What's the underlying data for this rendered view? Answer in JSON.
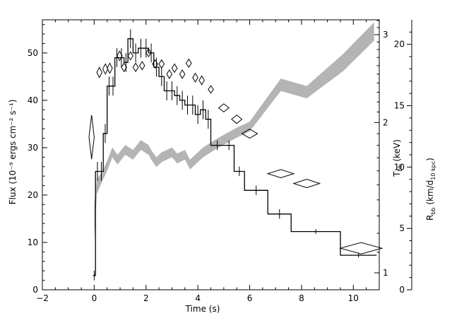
{
  "chart_data": {
    "type": "line",
    "grid": false,
    "xlabel": "Time (s)",
    "xlim": [
      -2,
      11
    ],
    "x_ticks": [
      -2,
      0,
      2,
      4,
      6,
      8,
      10
    ],
    "axes": {
      "flux": {
        "label": "Flux (10⁻⁹ ergs cm⁻² s⁻¹)",
        "lim": [
          0,
          57
        ],
        "ticks": [
          0,
          10,
          20,
          30,
          40,
          50
        ]
      },
      "temperature": {
        "label_main": "T",
        "label_sub": "bb",
        "label_rest": " (keV)",
        "scale": "log",
        "ticks": [
          1,
          2,
          3
        ]
      },
      "radius": {
        "label_main": "R",
        "label_sub": "bb",
        "label_mid": " (km/d",
        "label_sub2": "10 kpc",
        "label_end": ")",
        "lim": [
          0,
          22
        ],
        "ticks": [
          0,
          5,
          10,
          15,
          20
        ]
      }
    },
    "series": [
      {
        "style": "histogram",
        "axis": "flux",
        "color": "#000000",
        "bins": [
          {
            "x0": -0.05,
            "x1": 0.05,
            "y": 3,
            "err": 1
          },
          {
            "x0": 0.05,
            "x1": 0.2,
            "y": 25,
            "err": 2
          },
          {
            "x0": 0.2,
            "x1": 0.35,
            "y": 25,
            "err": 2
          },
          {
            "x0": 0.35,
            "x1": 0.5,
            "y": 33,
            "err": 2
          },
          {
            "x0": 0.5,
            "x1": 0.65,
            "y": 43,
            "err": 2
          },
          {
            "x0": 0.65,
            "x1": 0.8,
            "y": 43,
            "err": 2
          },
          {
            "x0": 0.8,
            "x1": 0.95,
            "y": 49,
            "err": 2
          },
          {
            "x0": 0.95,
            "x1": 1.15,
            "y": 49,
            "err": 2
          },
          {
            "x0": 1.15,
            "x1": 1.3,
            "y": 48,
            "err": 2
          },
          {
            "x0": 1.3,
            "x1": 1.5,
            "y": 53,
            "err": 2
          },
          {
            "x0": 1.5,
            "x1": 1.7,
            "y": 50,
            "err": 2
          },
          {
            "x0": 1.7,
            "x1": 1.9,
            "y": 51,
            "err": 2
          },
          {
            "x0": 1.9,
            "x1": 2.1,
            "y": 51,
            "err": 2
          },
          {
            "x0": 2.1,
            "x1": 2.3,
            "y": 50,
            "err": 2
          },
          {
            "x0": 2.3,
            "x1": 2.5,
            "y": 47,
            "err": 2
          },
          {
            "x0": 2.5,
            "x1": 2.7,
            "y": 45,
            "err": 2
          },
          {
            "x0": 2.7,
            "x1": 2.9,
            "y": 42,
            "err": 2
          },
          {
            "x0": 2.9,
            "x1": 3.1,
            "y": 42,
            "err": 2
          },
          {
            "x0": 3.1,
            "x1": 3.3,
            "y": 41,
            "err": 2
          },
          {
            "x0": 3.3,
            "x1": 3.5,
            "y": 40,
            "err": 2
          },
          {
            "x0": 3.5,
            "x1": 3.7,
            "y": 39,
            "err": 2
          },
          {
            "x0": 3.7,
            "x1": 3.9,
            "y": 39,
            "err": 2
          },
          {
            "x0": 3.9,
            "x1": 4.1,
            "y": 37,
            "err": 2
          },
          {
            "x0": 4.1,
            "x1": 4.3,
            "y": 38,
            "err": 2
          },
          {
            "x0": 4.3,
            "x1": 4.5,
            "y": 36,
            "err": 2
          },
          {
            "x0": 4.5,
            "x1": 5.0,
            "y": 30.5,
            "err": 1
          },
          {
            "x0": 5.0,
            "x1": 5.4,
            "y": 30.5,
            "err": 1
          },
          {
            "x0": 5.4,
            "x1": 5.8,
            "y": 25,
            "err": 1
          },
          {
            "x0": 5.8,
            "x1": 6.7,
            "y": 21,
            "err": 1
          },
          {
            "x0": 6.7,
            "x1": 7.6,
            "y": 16,
            "err": 1
          },
          {
            "x0": 7.6,
            "x1": 9.5,
            "y": 12.3,
            "err": 0.5
          },
          {
            "x0": 9.5,
            "x1": 10.9,
            "y": 7.3,
            "err": 0.5
          }
        ]
      },
      {
        "style": "diamonds",
        "axis": "temperature",
        "color": "#000000",
        "points": [
          {
            "x": -0.1,
            "y": 1.87,
            "dx": 0.1,
            "dy": 0.2
          },
          {
            "x": 0.2,
            "y": 2.52,
            "dx": 0.1,
            "dy": 0.06
          },
          {
            "x": 0.43,
            "y": 2.56,
            "dx": 0.1,
            "dy": 0.06
          },
          {
            "x": 0.6,
            "y": 2.57,
            "dx": 0.1,
            "dy": 0.06
          },
          {
            "x": 0.98,
            "y": 2.72,
            "dx": 0.1,
            "dy": 0.06
          },
          {
            "x": 1.15,
            "y": 2.58,
            "dx": 0.1,
            "dy": 0.05
          },
          {
            "x": 1.4,
            "y": 2.72,
            "dx": 0.1,
            "dy": 0.05
          },
          {
            "x": 1.6,
            "y": 2.58,
            "dx": 0.1,
            "dy": 0.05
          },
          {
            "x": 1.85,
            "y": 2.6,
            "dx": 0.1,
            "dy": 0.05
          },
          {
            "x": 2.1,
            "y": 2.76,
            "dx": 0.1,
            "dy": 0.05
          },
          {
            "x": 2.35,
            "y": 2.62,
            "dx": 0.1,
            "dy": 0.05
          },
          {
            "x": 2.6,
            "y": 2.62,
            "dx": 0.1,
            "dy": 0.05
          },
          {
            "x": 2.9,
            "y": 2.5,
            "dx": 0.1,
            "dy": 0.05
          },
          {
            "x": 3.1,
            "y": 2.57,
            "dx": 0.1,
            "dy": 0.05
          },
          {
            "x": 3.4,
            "y": 2.5,
            "dx": 0.1,
            "dy": 0.05
          },
          {
            "x": 3.65,
            "y": 2.63,
            "dx": 0.1,
            "dy": 0.05
          },
          {
            "x": 3.9,
            "y": 2.46,
            "dx": 0.1,
            "dy": 0.05
          },
          {
            "x": 4.15,
            "y": 2.43,
            "dx": 0.1,
            "dy": 0.05
          },
          {
            "x": 4.5,
            "y": 2.33,
            "dx": 0.1,
            "dy": 0.04
          },
          {
            "x": 5.0,
            "y": 2.14,
            "dx": 0.2,
            "dy": 0.04
          },
          {
            "x": 5.5,
            "y": 2.03,
            "dx": 0.2,
            "dy": 0.04
          },
          {
            "x": 6.0,
            "y": 1.9,
            "dx": 0.3,
            "dy": 0.04
          },
          {
            "x": 7.2,
            "y": 1.58,
            "dx": 0.5,
            "dy": 0.03
          },
          {
            "x": 8.2,
            "y": 1.51,
            "dx": 0.5,
            "dy": 0.03
          },
          {
            "x": 10.3,
            "y": 1.12,
            "dx": 0.8,
            "dy": 0.03
          }
        ]
      },
      {
        "style": "band",
        "axis": "radius",
        "color": "#b4b4b4",
        "points": [
          {
            "x": 0.0,
            "lo": 4.0,
            "hi": 7.0
          },
          {
            "x": 0.1,
            "lo": 7.8,
            "hi": 9.0
          },
          {
            "x": 0.3,
            "lo": 8.8,
            "hi": 9.6
          },
          {
            "x": 0.5,
            "lo": 9.7,
            "hi": 10.5
          },
          {
            "x": 0.7,
            "lo": 10.8,
            "hi": 11.6
          },
          {
            "x": 0.9,
            "lo": 10.2,
            "hi": 11.0
          },
          {
            "x": 1.2,
            "lo": 11.0,
            "hi": 11.8
          },
          {
            "x": 1.5,
            "lo": 10.6,
            "hi": 11.4
          },
          {
            "x": 1.8,
            "lo": 11.4,
            "hi": 12.2
          },
          {
            "x": 2.1,
            "lo": 11.0,
            "hi": 11.8
          },
          {
            "x": 2.2,
            "lo": 10.6,
            "hi": 11.4
          },
          {
            "x": 2.4,
            "lo": 10.0,
            "hi": 10.8
          },
          {
            "x": 2.6,
            "lo": 10.4,
            "hi": 11.2
          },
          {
            "x": 3.0,
            "lo": 10.8,
            "hi": 11.6
          },
          {
            "x": 3.2,
            "lo": 10.3,
            "hi": 11.1
          },
          {
            "x": 3.5,
            "lo": 10.6,
            "hi": 11.4
          },
          {
            "x": 3.7,
            "lo": 9.8,
            "hi": 10.6
          },
          {
            "x": 4.2,
            "lo": 10.8,
            "hi": 11.6
          },
          {
            "x": 4.8,
            "lo": 11.6,
            "hi": 12.4
          },
          {
            "x": 5.5,
            "lo": 12.4,
            "hi": 13.2
          },
          {
            "x": 6.0,
            "lo": 12.9,
            "hi": 13.7
          },
          {
            "x": 7.2,
            "lo": 16.2,
            "hi": 17.2
          },
          {
            "x": 8.2,
            "lo": 15.6,
            "hi": 16.6
          },
          {
            "x": 9.6,
            "lo": 17.8,
            "hi": 19.2
          },
          {
            "x": 10.8,
            "lo": 20.3,
            "hi": 21.8
          }
        ]
      }
    ]
  }
}
